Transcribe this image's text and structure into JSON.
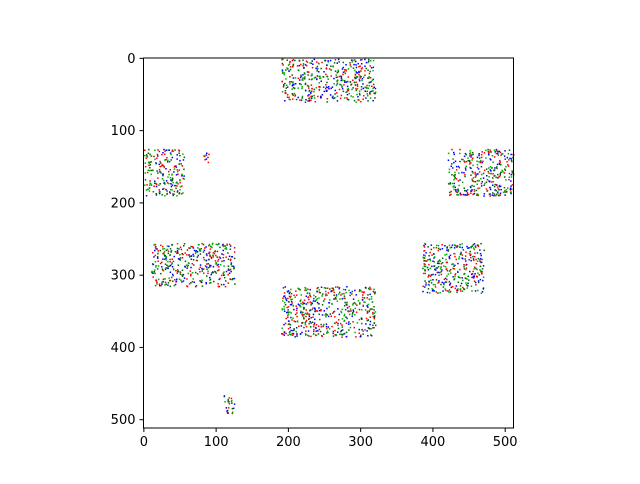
{
  "chart_data": {
    "type": "image",
    "xlim": [
      -0.5,
      511.5
    ],
    "ylim": [
      511.5,
      -0.5
    ],
    "xticks": [
      0,
      100,
      200,
      300,
      400,
      500
    ],
    "yticks": [
      0,
      100,
      200,
      300,
      400,
      500
    ],
    "colors": [
      "#ff0000",
      "#00b000",
      "#0000ff",
      "#006400"
    ],
    "clusters": [
      {
        "x": [
          190,
          320
        ],
        "y": [
          0,
          60
        ]
      },
      {
        "x": [
          0,
          55
        ],
        "y": [
          125,
          190
        ]
      },
      {
        "x": [
          80,
          90
        ],
        "y": [
          130,
          145
        ]
      },
      {
        "x": [
          420,
          511
        ],
        "y": [
          125,
          190
        ]
      },
      {
        "x": [
          10,
          125
        ],
        "y": [
          255,
          315
        ]
      },
      {
        "x": [
          385,
          470
        ],
        "y": [
          255,
          325
        ]
      },
      {
        "x": [
          190,
          320
        ],
        "y": [
          315,
          385
        ]
      },
      {
        "x": [
          110,
          125
        ],
        "y": [
          465,
          495
        ]
      }
    ]
  }
}
